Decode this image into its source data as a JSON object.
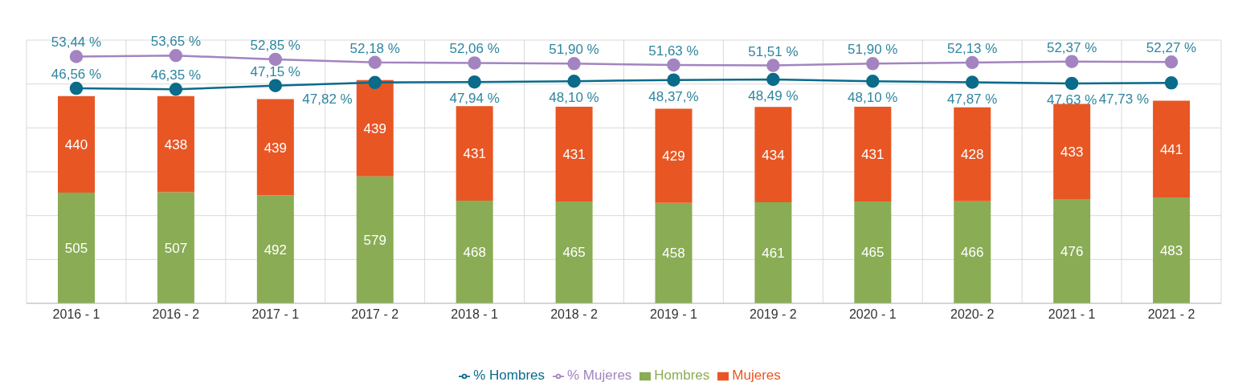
{
  "chart_data": {
    "type": "bar",
    "stacked": true,
    "categories": [
      "2016 - 1",
      "2016 - 2",
      "2017 - 1",
      "2017 - 2",
      "2018 - 1",
      "2018 - 2",
      "2019 - 1",
      "2019 - 2",
      "2020 - 1",
      "2020- 2",
      "2021 - 1",
      "2021 - 2"
    ],
    "series": [
      {
        "name": "Hombres",
        "color": "#8aac55",
        "values": [
          505,
          507,
          492,
          579,
          468,
          465,
          458,
          461,
          465,
          466,
          476,
          483
        ],
        "data_labels": true
      },
      {
        "name": "Mujeres",
        "color": "#e85624",
        "values": [
          440,
          438,
          439,
          439,
          431,
          431,
          429,
          434,
          431,
          428,
          433,
          441
        ],
        "data_labels": true
      },
      {
        "name": "% Hombres",
        "type": "line",
        "axis": "y2",
        "color": "#0a6b8a",
        "marker": "circle",
        "values": [
          46.56,
          46.35,
          47.15,
          47.82,
          47.94,
          48.1,
          48.37,
          48.49,
          48.1,
          47.87,
          47.63,
          47.73
        ],
        "value_labels": [
          "46,56 %",
          "46,35 %",
          "47,15 %",
          "47,82 %",
          "47,94 %",
          "48,10 %",
          "48,37,%",
          "48,49 %",
          "48,10 %",
          "47,87 %",
          "47,63 %",
          "47,73 %"
        ]
      },
      {
        "name": "% Mujeres",
        "type": "line",
        "axis": "y2",
        "color": "#a384c0",
        "marker": "circle",
        "values": [
          53.44,
          53.65,
          52.85,
          52.18,
          52.06,
          51.9,
          51.63,
          51.51,
          51.9,
          52.13,
          52.37,
          52.27
        ],
        "value_labels": [
          "53,44 %",
          "53,65 %",
          "52,85 %",
          "52,18 %",
          "52,06 %",
          "51,90 %",
          "51,63 %",
          "51,51 %",
          "51,90 %",
          "52,13 %",
          "52,37 %",
          "52,27 %"
        ]
      }
    ],
    "ylim": [
      0,
      1200
    ],
    "yticks": [
      {
        "value": 0,
        "label": null
      },
      {
        "value": 200,
        "label": null
      },
      {
        "value": 400,
        "label": null
      },
      {
        "value": 600,
        "label": null
      },
      {
        "value": 800,
        "label": null
      },
      {
        "value": 1000,
        "label": null
      },
      {
        "value": 1200,
        "label": null
      }
    ],
    "y2lim": [
      0,
      57
    ],
    "tick_labels": "x",
    "grid": true,
    "legend": "bottom"
  }
}
